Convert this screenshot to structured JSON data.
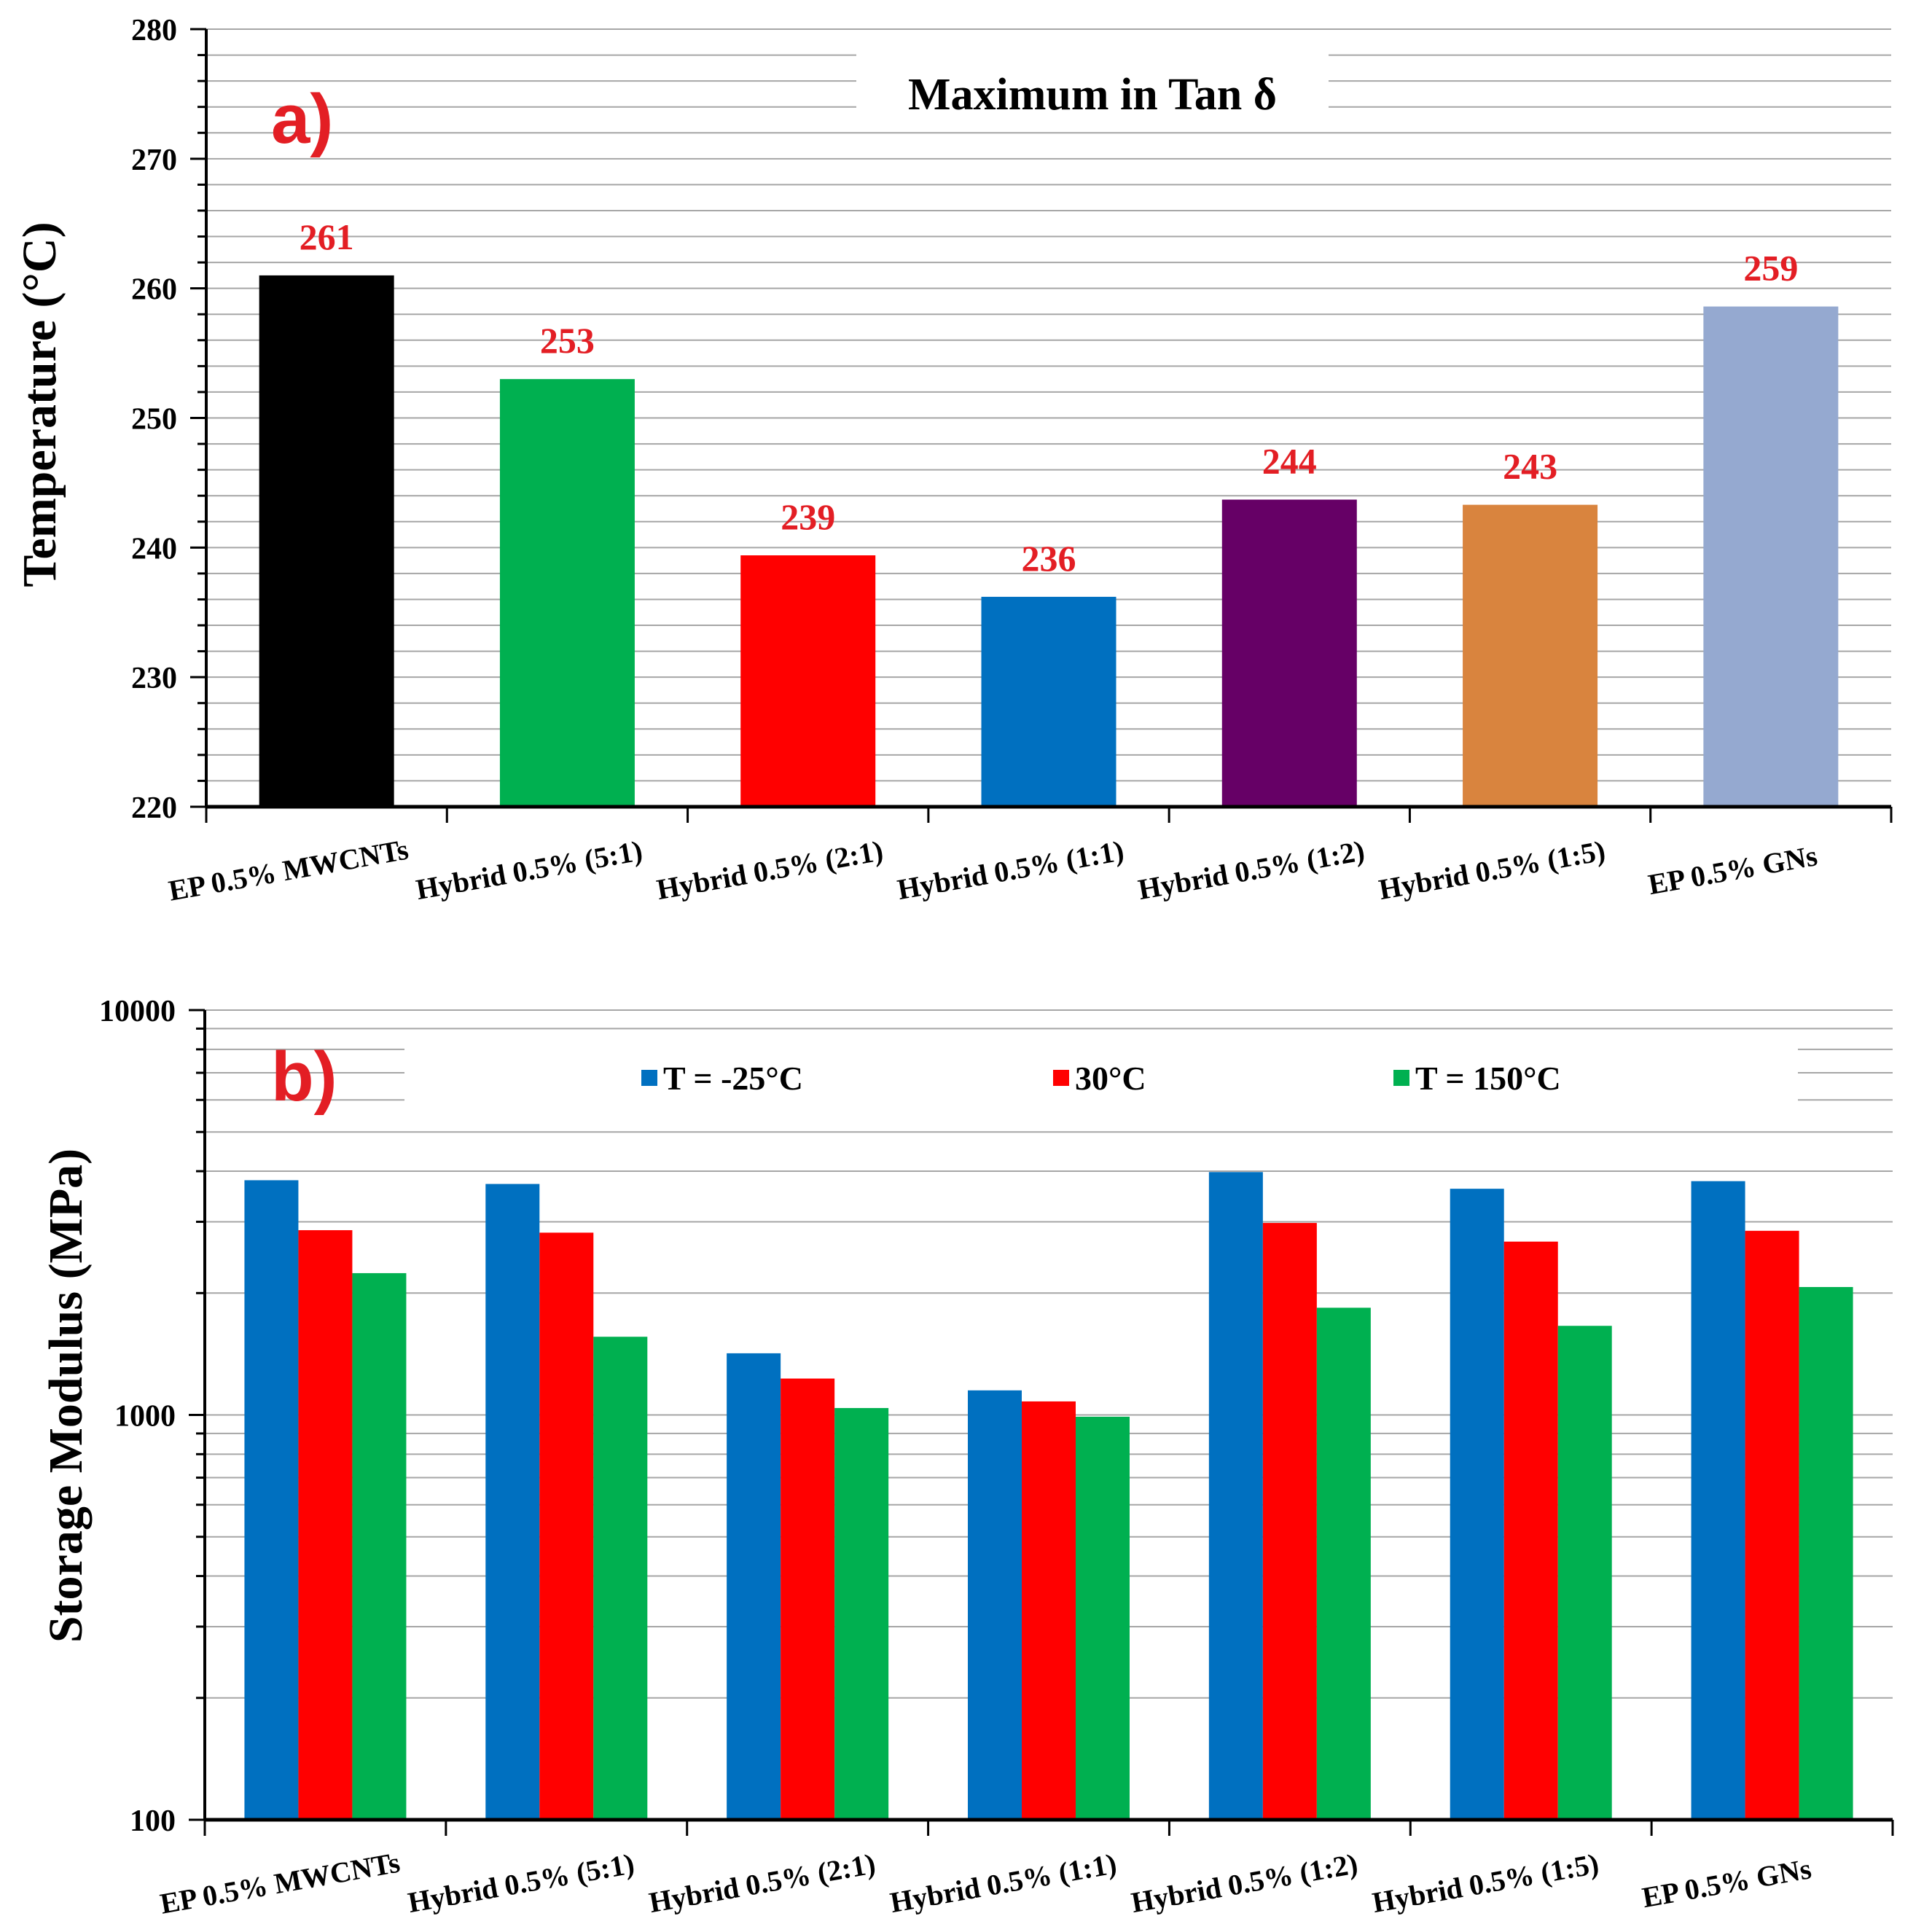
{
  "colors": {
    "gridline": "#a6a6a6",
    "axis": "#000000",
    "value_label": "#e31e24",
    "panel_tag": "#e31e24"
  },
  "chart_data": [
    {
      "type": "bar",
      "panel_tag": "a)",
      "title": "Maximum in Tan δ",
      "xlabel": "",
      "ylabel": "Temperature (°C)",
      "ylim": [
        220,
        280
      ],
      "yticks": [
        "220",
        "230",
        "240",
        "250",
        "260",
        "270",
        "280"
      ],
      "minor_grid_step": 2,
      "grid": true,
      "categories": [
        "EP 0.5% MWCNTs",
        "Hybrid 0.5% (5:1)",
        "Hybrid 0.5% (2:1)",
        "Hybrid 0.5% (1:1)",
        "Hybrid 0.5% (1:2)",
        "Hybrid 0.5% (1:5)",
        "EP 0.5% GNs"
      ],
      "values": [
        261,
        253,
        239.4,
        236.2,
        243.7,
        243.3,
        258.6
      ],
      "data_labels": [
        "261",
        "253",
        "239",
        "236",
        "244",
        "243",
        "259"
      ],
      "bar_colors": [
        "#000000",
        "#00b050",
        "#ff0000",
        "#0070c0",
        "#660066",
        "#d9843e",
        "#95a9d0"
      ]
    },
    {
      "type": "bar",
      "panel_tag": "b)",
      "title": "",
      "xlabel": "",
      "ylabel": "Storage Modulus (MPa)",
      "yscale": "log",
      "ylim": [
        100,
        10000
      ],
      "yticks": [
        "100",
        "1000",
        "10000"
      ],
      "grid": true,
      "legend_position": "top",
      "categories": [
        "EP 0.5% MWCNTs",
        "Hybrid 0.5% (5:1)",
        "Hybrid 0.5% (2:1)",
        "Hybrid 0.5% (1:1)",
        "Hybrid 0.5% (1:2)",
        "Hybrid 0.5% (1:5)",
        "EP 0.5% GNs"
      ],
      "series": [
        {
          "name": "T = -25°C",
          "color": "#0070c0",
          "values": [
            3800,
            3720,
            1420,
            1150,
            3980,
            3620,
            3780
          ]
        },
        {
          "name": "30°C",
          "color": "#ff0000",
          "values": [
            2860,
            2820,
            1230,
            1080,
            2980,
            2680,
            2850
          ]
        },
        {
          "name": "T = 150°C",
          "color": "#00b050",
          "values": [
            2240,
            1560,
            1040,
            990,
            1840,
            1660,
            2070
          ]
        }
      ]
    }
  ]
}
